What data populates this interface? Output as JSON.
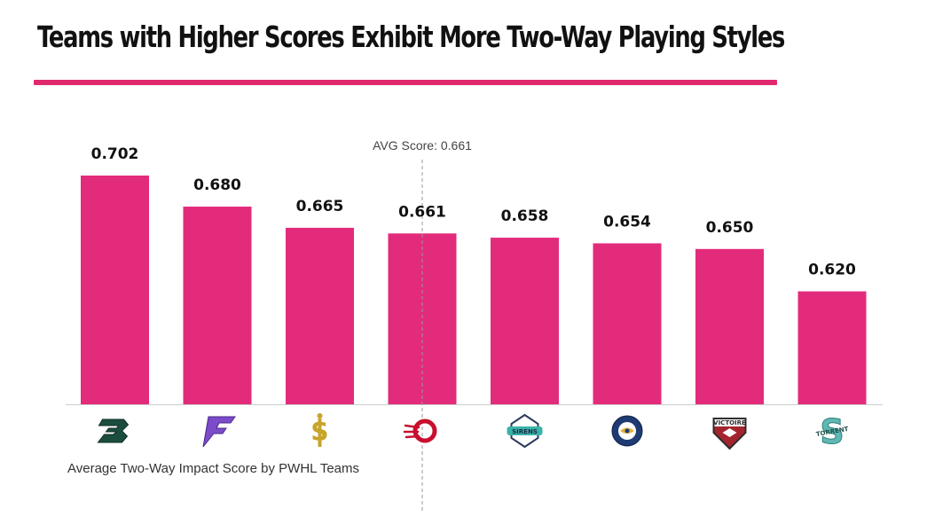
{
  "title": "Teams with Higher Scores Exhibit More Two-Way Playing Styles",
  "caption": "Average Two-Way Impact Score by PWHL Teams",
  "avg_label": "AVG Score: 0.661",
  "colors": {
    "bar": "#e32b7c",
    "accent_rule": "#e0296f",
    "axis": "#cccccc",
    "avg_line": "#999999"
  },
  "chart_data": {
    "type": "bar",
    "title": "Teams with Higher Scores Exhibit More Two-Way Playing Styles",
    "xlabel": "Average Two-Way Impact Score by PWHL Teams",
    "ylabel": "",
    "categories": [
      "Boston",
      "Minnesota",
      "Montréal",
      "Ottawa",
      "New York",
      "Vancouver",
      "Toronto",
      "Seattle"
    ],
    "category_logos": [
      "B",
      "F",
      "S",
      "C",
      "SIRENS",
      "GOLDENEYES",
      "VICTOIRE",
      "TORRENT"
    ],
    "values": [
      0.702,
      0.68,
      0.665,
      0.661,
      0.658,
      0.654,
      0.65,
      0.62
    ],
    "value_labels": [
      "0.702",
      "0.680",
      "0.665",
      "0.661",
      "0.658",
      "0.654",
      "0.650",
      "0.620"
    ],
    "average": 0.661,
    "average_category_index": 3,
    "ylim": [
      0.54,
      0.71
    ],
    "grid": false,
    "legend": "none"
  }
}
